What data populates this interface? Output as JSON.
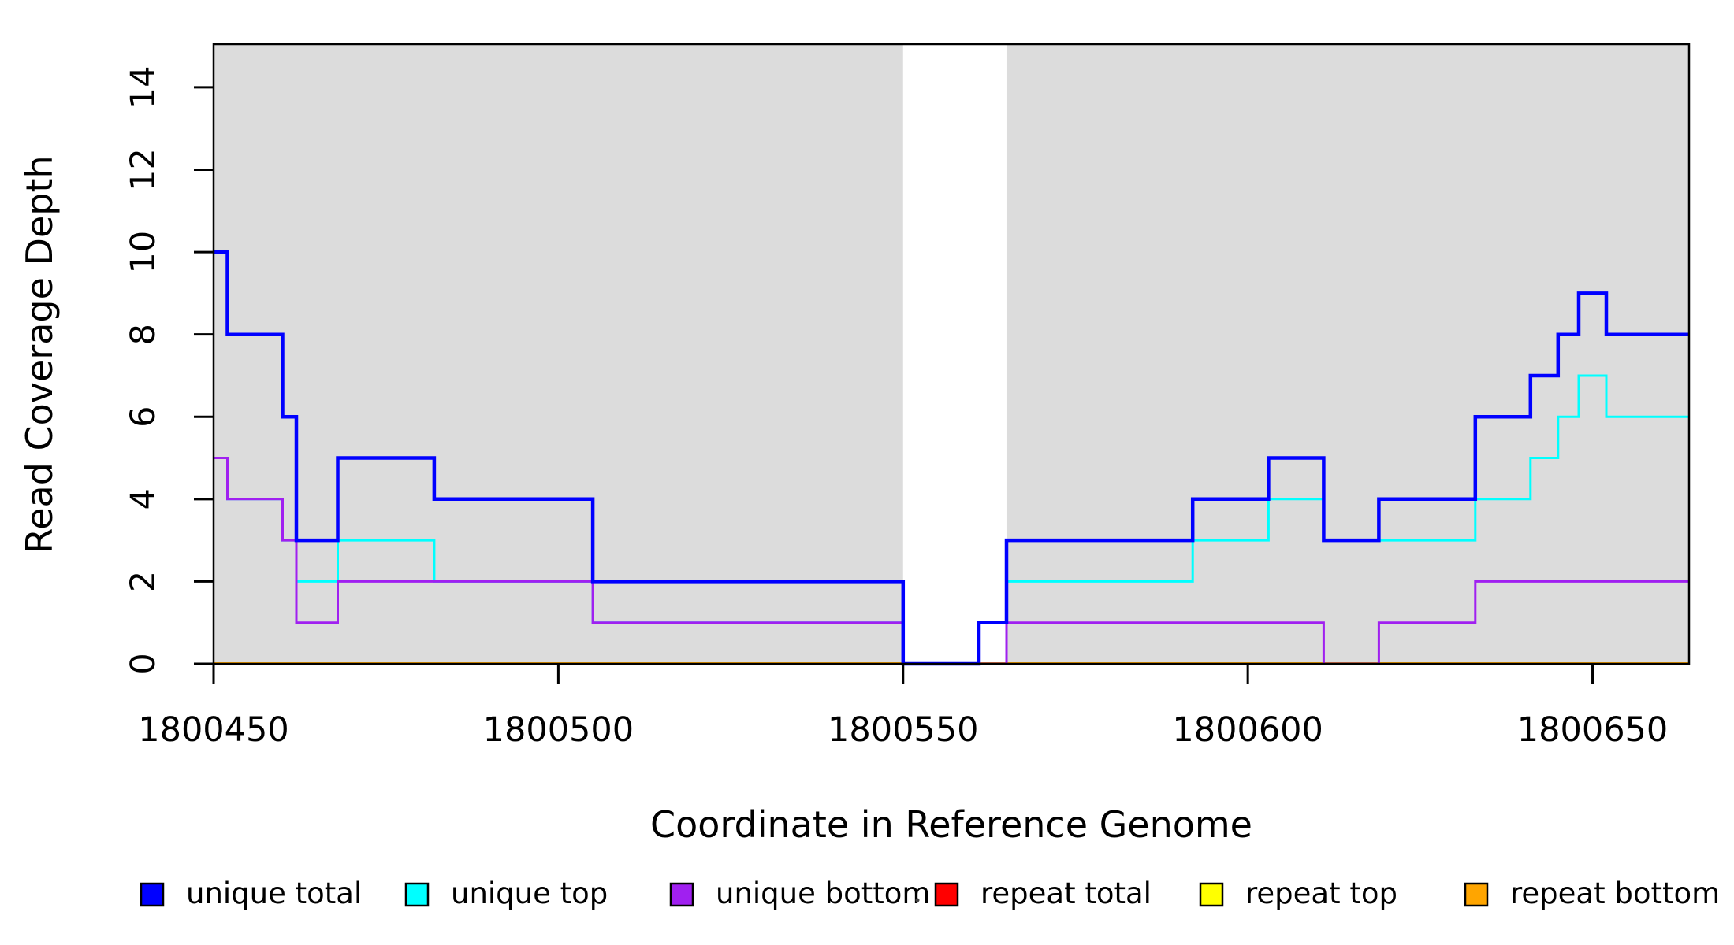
{
  "chart_data": {
    "type": "line",
    "subtype": "step-post",
    "title": "",
    "xlabel": "Coordinate in Reference Genome",
    "ylabel": "Read Coverage Depth",
    "xlim": [
      1800450,
      1800664
    ],
    "ylim": [
      0,
      15.05
    ],
    "x_ticks": [
      "1800450",
      "1800500",
      "1800550",
      "1800600",
      "1800650"
    ],
    "x_tick_values": [
      1800450,
      1800500,
      1800550,
      1800600,
      1800650
    ],
    "y_ticks": [
      "0",
      "2",
      "4",
      "6",
      "8",
      "10",
      "12",
      "14"
    ],
    "y_tick_values": [
      0,
      2,
      4,
      6,
      8,
      10,
      12,
      14
    ],
    "grid": false,
    "background_color": "#ffffff",
    "shaded_band_color": "#dcdcdc",
    "shaded_regions": [
      {
        "x0": 1800450,
        "x1": 1800550
      },
      {
        "x0": 1800565,
        "x1": 1800664
      }
    ],
    "series": [
      {
        "name": "repeat total",
        "color": "#FF0000",
        "width": 3,
        "points": [
          [
            1800450,
            0
          ],
          [
            1800664,
            0
          ]
        ]
      },
      {
        "name": "repeat top",
        "color": "#FFFF00",
        "width": 3,
        "points": [
          [
            1800450,
            0
          ],
          [
            1800664,
            0
          ]
        ]
      },
      {
        "name": "repeat bottom",
        "color": "#FFA500",
        "width": 4,
        "points": [
          [
            1800450,
            0
          ],
          [
            1800664,
            0
          ]
        ]
      },
      {
        "name": "unique top",
        "color": "#00FFFF",
        "width": 3,
        "points": [
          [
            1800450,
            5
          ],
          [
            1800452,
            4
          ],
          [
            1800460,
            3
          ],
          [
            1800462,
            2
          ],
          [
            1800468,
            3
          ],
          [
            1800482,
            2
          ],
          [
            1800505,
            1
          ],
          [
            1800550,
            0
          ],
          [
            1800561,
            1
          ],
          [
            1800565,
            2
          ],
          [
            1800592,
            3
          ],
          [
            1800603,
            4
          ],
          [
            1800611,
            3
          ],
          [
            1800633,
            4
          ],
          [
            1800641,
            5
          ],
          [
            1800645,
            6
          ],
          [
            1800648,
            7
          ],
          [
            1800652,
            6
          ],
          [
            1800664,
            6
          ]
        ]
      },
      {
        "name": "unique bottom",
        "color": "#A020F0",
        "width": 3,
        "points": [
          [
            1800450,
            5
          ],
          [
            1800452,
            4
          ],
          [
            1800460,
            3
          ],
          [
            1800462,
            1
          ],
          [
            1800468,
            2
          ],
          [
            1800505,
            1
          ],
          [
            1800550,
            0
          ],
          [
            1800565,
            1
          ],
          [
            1800611,
            0
          ],
          [
            1800619,
            1
          ],
          [
            1800633,
            2
          ],
          [
            1800664,
            2
          ]
        ]
      },
      {
        "name": "unique total",
        "color": "#0000FF",
        "width": 4.5,
        "points": [
          [
            1800450,
            10
          ],
          [
            1800452,
            8
          ],
          [
            1800460,
            6
          ],
          [
            1800462,
            3
          ],
          [
            1800468,
            5
          ],
          [
            1800482,
            4
          ],
          [
            1800505,
            2
          ],
          [
            1800550,
            0
          ],
          [
            1800561,
            1
          ],
          [
            1800565,
            3
          ],
          [
            1800592,
            4
          ],
          [
            1800603,
            5
          ],
          [
            1800611,
            3
          ],
          [
            1800619,
            4
          ],
          [
            1800633,
            6
          ],
          [
            1800641,
            7
          ],
          [
            1800645,
            8
          ],
          [
            1800648,
            9
          ],
          [
            1800652,
            8
          ],
          [
            1800664,
            8
          ]
        ]
      }
    ],
    "legend": {
      "position": "bottom",
      "items": [
        {
          "label": "unique total",
          "color": "#0000FF"
        },
        {
          "label": "unique top",
          "color": "#00FFFF"
        },
        {
          "label": "unique bottom",
          "color": "#A020F0"
        },
        {
          "label": "repeat total",
          "color": "#FF0000"
        },
        {
          "label": "repeat top",
          "color": "#FFFF00"
        },
        {
          "label": "repeat bottom",
          "color": "#FFA500"
        }
      ]
    }
  }
}
